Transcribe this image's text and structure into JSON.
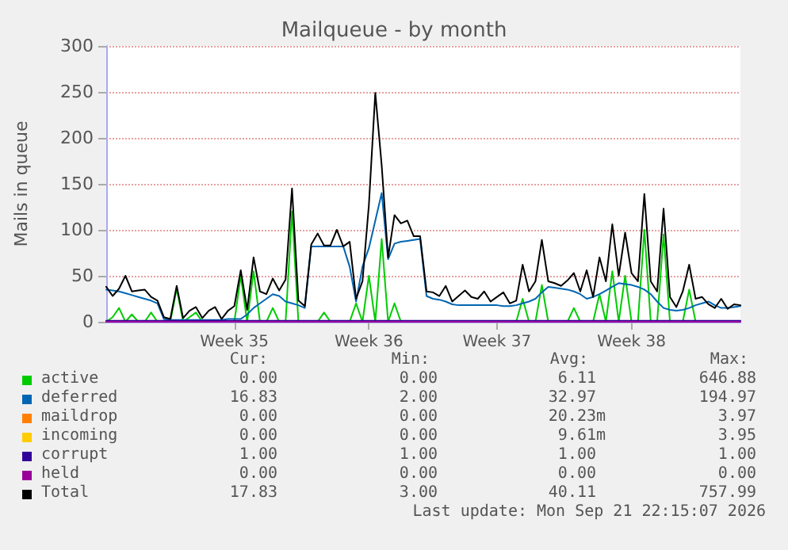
{
  "chart_data": {
    "type": "line",
    "title": "Mailqueue - by month",
    "ylabel": "Mails in queue",
    "categories": [
      null,
      null,
      null,
      null,
      null,
      null,
      null,
      null,
      null,
      null,
      null,
      null,
      null,
      null,
      null,
      null,
      null,
      null,
      null,
      null,
      "Week 35",
      null,
      null,
      null,
      null,
      null,
      null,
      null,
      null,
      null,
      null,
      null,
      null,
      null,
      null,
      null,
      null,
      null,
      null,
      null,
      null,
      "Week 36",
      null,
      null,
      null,
      null,
      null,
      null,
      null,
      null,
      null,
      null,
      null,
      null,
      null,
      null,
      null,
      null,
      null,
      null,
      null,
      "Week 37",
      null,
      null,
      null,
      null,
      null,
      null,
      null,
      null,
      null,
      null,
      null,
      null,
      null,
      null,
      null,
      null,
      null,
      null,
      null,
      null,
      "Week 38",
      null,
      null,
      null,
      null,
      null,
      null,
      null,
      null,
      null,
      null,
      null,
      null,
      null,
      null,
      null,
      null,
      null
    ],
    "ylim": [
      0,
      300
    ],
    "yticks": [
      0,
      50,
      100,
      150,
      200,
      250,
      300
    ],
    "grid": "y",
    "legend": "bottom",
    "marker": "none",
    "line_style": "solid",
    "series": [
      {
        "name": "active",
        "color": "#00cc00",
        "values": [
          0,
          5,
          15,
          0,
          8,
          0,
          0,
          10,
          0,
          0,
          0,
          36,
          0,
          5,
          10,
          0,
          0,
          0,
          0,
          0,
          0,
          50,
          0,
          55,
          0,
          0,
          15,
          0,
          0,
          120,
          0,
          0,
          0,
          0,
          10,
          0,
          0,
          0,
          0,
          20,
          0,
          50,
          0,
          90,
          0,
          20,
          0,
          0,
          0,
          0,
          0,
          0,
          0,
          0,
          0,
          0,
          0,
          0,
          0,
          0,
          0,
          0,
          0,
          0,
          0,
          25,
          0,
          0,
          40,
          0,
          0,
          0,
          0,
          15,
          0,
          0,
          0,
          30,
          0,
          55,
          0,
          50,
          0,
          0,
          100,
          0,
          0,
          95,
          0,
          0,
          0,
          35,
          0,
          0,
          0,
          null,
          null,
          null,
          null,
          null
        ]
      },
      {
        "name": "deferred",
        "color": "#0066b3",
        "values": [
          35,
          34,
          33,
          31,
          29,
          27,
          25,
          23,
          20,
          3,
          2,
          2,
          2,
          2,
          2,
          2,
          2,
          2,
          2,
          3,
          3,
          3,
          8,
          15,
          20,
          25,
          30,
          28,
          22,
          20,
          18,
          15,
          82,
          82,
          82,
          82,
          82,
          82,
          60,
          22,
          60,
          80,
          110,
          140,
          68,
          85,
          87,
          88,
          89,
          90,
          28,
          25,
          24,
          22,
          19,
          18,
          18,
          18,
          18,
          18,
          18,
          18,
          17,
          17,
          18,
          20,
          22,
          25,
          32,
          38,
          37,
          36,
          35,
          33,
          30,
          25,
          27,
          30,
          34,
          38,
          42,
          41,
          40,
          38,
          35,
          30,
          22,
          15,
          13,
          12,
          13,
          15,
          18,
          20,
          22,
          18,
          15,
          15,
          16,
          17
        ]
      },
      {
        "name": "maildrop",
        "color": "#ff8000",
        "values": [
          null,
          null,
          null,
          null,
          null,
          null,
          null,
          null,
          null,
          null,
          null,
          null,
          null,
          null,
          null,
          null,
          null,
          null,
          null,
          null,
          null,
          null,
          null,
          null,
          null,
          null,
          null,
          null,
          null,
          null,
          null,
          null,
          null,
          null,
          null,
          null,
          null,
          null,
          null,
          null,
          null,
          null,
          null,
          null,
          null,
          null,
          null,
          null,
          null,
          null,
          null,
          null,
          null,
          null,
          null,
          null,
          null,
          null,
          null,
          null,
          null,
          null,
          null,
          null,
          null,
          null,
          null,
          null,
          null,
          null,
          null,
          null,
          null,
          null,
          null,
          null,
          null,
          null,
          null,
          null,
          null,
          null,
          null,
          null,
          null,
          null,
          null,
          null,
          null,
          null,
          null,
          null,
          null,
          null,
          null,
          null,
          null,
          null,
          null,
          null
        ]
      },
      {
        "name": "incoming",
        "color": "#ffcc00",
        "values": [
          null,
          null,
          null,
          null,
          null,
          null,
          null,
          null,
          null,
          null,
          null,
          null,
          null,
          null,
          null,
          null,
          null,
          null,
          null,
          null,
          null,
          null,
          null,
          null,
          null,
          null,
          null,
          null,
          null,
          null,
          null,
          null,
          null,
          null,
          null,
          null,
          null,
          null,
          null,
          null,
          null,
          null,
          null,
          null,
          null,
          null,
          null,
          null,
          null,
          null,
          null,
          null,
          null,
          null,
          null,
          null,
          null,
          null,
          null,
          null,
          null,
          null,
          null,
          null,
          null,
          null,
          null,
          null,
          null,
          null,
          null,
          null,
          null,
          null,
          null,
          null,
          null,
          null,
          null,
          null,
          null,
          null,
          null,
          null,
          null,
          null,
          null,
          null,
          null,
          null,
          null,
          null,
          null,
          null,
          null,
          null,
          null,
          null,
          null,
          null
        ]
      },
      {
        "name": "corrupt",
        "color": "#330099",
        "values": [
          1,
          1,
          1,
          1,
          1,
          1,
          1,
          1,
          1,
          1,
          1,
          1,
          1,
          1,
          1,
          1,
          1,
          1,
          1,
          1,
          1,
          1,
          1,
          1,
          1,
          1,
          1,
          1,
          1,
          1,
          1,
          1,
          1,
          1,
          1,
          1,
          1,
          1,
          1,
          1,
          1,
          1,
          1,
          1,
          1,
          1,
          1,
          1,
          1,
          1,
          1,
          1,
          1,
          1,
          1,
          1,
          1,
          1,
          1,
          1,
          1,
          1,
          1,
          1,
          1,
          1,
          1,
          1,
          1,
          1,
          1,
          1,
          1,
          1,
          1,
          1,
          1,
          1,
          1,
          1,
          1,
          1,
          1,
          1,
          1,
          1,
          1,
          1,
          1,
          1,
          1,
          1,
          1,
          1,
          1,
          1,
          1,
          1,
          1,
          1
        ]
      },
      {
        "name": "held",
        "color": "#990099",
        "values": [
          0,
          0,
          0,
          0,
          0,
          0,
          0,
          0,
          0,
          0,
          0,
          0,
          0,
          0,
          0,
          0,
          0,
          0,
          0,
          0,
          0,
          0,
          0,
          0,
          0,
          0,
          0,
          0,
          0,
          0,
          0,
          0,
          0,
          0,
          0,
          0,
          0,
          0,
          0,
          0,
          0,
          0,
          0,
          0,
          0,
          0,
          0,
          0,
          0,
          0,
          0,
          0,
          0,
          0,
          0,
          0,
          0,
          0,
          0,
          0,
          0,
          0,
          0,
          0,
          0,
          0,
          0,
          0,
          0,
          0,
          0,
          0,
          0,
          0,
          0,
          0,
          0,
          0,
          0,
          0,
          0,
          0,
          0,
          0,
          0,
          0,
          0,
          0,
          0,
          0,
          0,
          0,
          0,
          0,
          0,
          0,
          0,
          0,
          0,
          0
        ]
      },
      {
        "name": "Total",
        "color": "#000000",
        "values": [
          38,
          28,
          36,
          50,
          33,
          34,
          35,
          27,
          23,
          5,
          3,
          39,
          4,
          12,
          16,
          4,
          12,
          16,
          3,
          12,
          17,
          56,
          13,
          70,
          33,
          30,
          47,
          34,
          46,
          145,
          23,
          17,
          84,
          96,
          83,
          83,
          100,
          82,
          87,
          25,
          44,
          127,
          249,
          170,
          70,
          116,
          107,
          110,
          93,
          93,
          33,
          32,
          28,
          39,
          22,
          28,
          34,
          27,
          25,
          33,
          22,
          27,
          32,
          20,
          23,
          62,
          33,
          44,
          89,
          44,
          42,
          39,
          45,
          53,
          33,
          56,
          27,
          70,
          44,
          106,
          50,
          97,
          53,
          44,
          139,
          44,
          33,
          123,
          27,
          16,
          33,
          62,
          25,
          27,
          19,
          15,
          25,
          14,
          19,
          18
        ]
      }
    ],
    "annotations": [
      "Cur:",
      "Min:",
      "Avg:",
      "Max:",
      "0.00",
      "0.00",
      "6.11",
      "646.88",
      "16.83",
      "2.00",
      "32.97",
      "194.97",
      "0.00",
      "0.00",
      "20.23m",
      "3.97",
      "0.00",
      "0.00",
      "9.61m",
      "3.95",
      "1.00",
      "1.00",
      "1.00",
      "1.00",
      "0.00",
      "0.00",
      "0.00",
      "0.00",
      "17.83",
      "3.00",
      "40.11",
      "757.99",
      "Last update: Mon Sep 21 22:15:07 2026"
    ]
  }
}
